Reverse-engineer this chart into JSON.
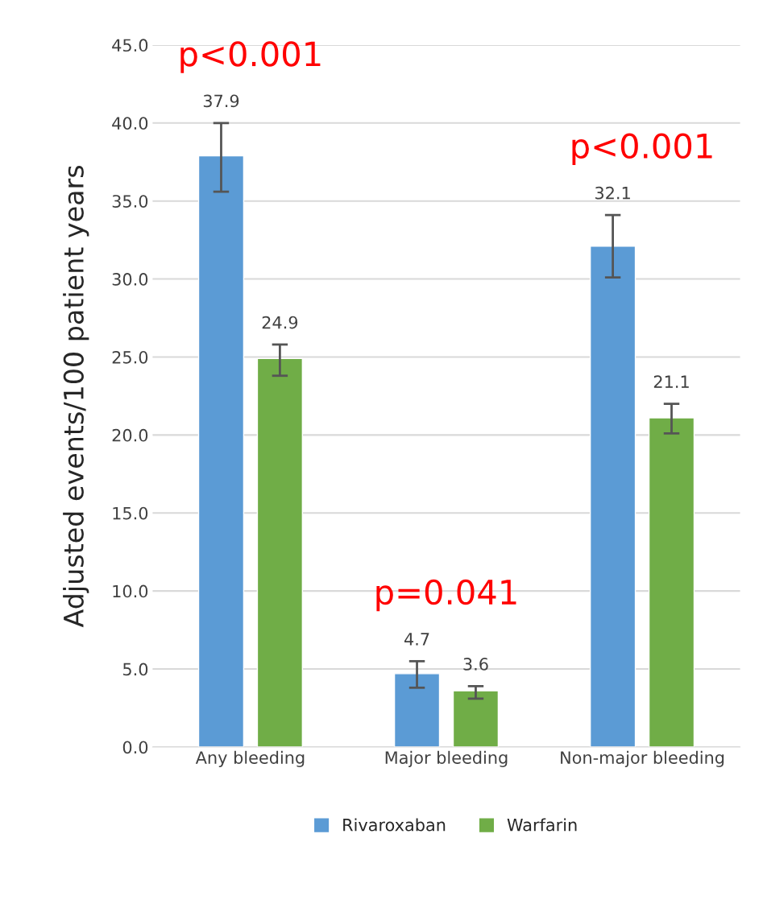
{
  "chart_data": {
    "type": "bar",
    "ylabel": "Adjusted events/100 patient years",
    "categories": [
      "Any bleeding",
      "Major bleeding",
      "Non-major bleeding"
    ],
    "series": [
      {
        "name": "Rivaroxaban",
        "color": "#5b9bd5",
        "values": [
          37.9,
          4.7,
          32.1
        ],
        "errors": [
          [
            35.6,
            40.0
          ],
          [
            3.8,
            5.5
          ],
          [
            30.1,
            34.1
          ]
        ]
      },
      {
        "name": "Warfarin",
        "color": "#70ad47",
        "values": [
          24.9,
          3.6,
          21.1
        ],
        "errors": [
          [
            23.8,
            25.8
          ],
          [
            3.1,
            3.9
          ],
          [
            20.1,
            22.0
          ]
        ]
      }
    ],
    "data_labels": true,
    "ylim": [
      0,
      45
    ],
    "yticks": [
      {
        "value": 0,
        "label": "0.0"
      },
      {
        "value": 5,
        "label": "5.0"
      },
      {
        "value": 10,
        "label": "10.0"
      },
      {
        "value": 15,
        "label": "15.0"
      },
      {
        "value": 20,
        "label": "20.0"
      },
      {
        "value": 25,
        "label": "25.0"
      },
      {
        "value": 30,
        "label": "30.0"
      },
      {
        "value": 35,
        "label": "35.0"
      },
      {
        "value": 40,
        "label": "40.0"
      },
      {
        "value": 45,
        "label": "45.0"
      }
    ],
    "grid": "y",
    "legend": "bottom",
    "annotations": [
      "p<0.001",
      "p=0.041",
      "p<0.001"
    ]
  }
}
